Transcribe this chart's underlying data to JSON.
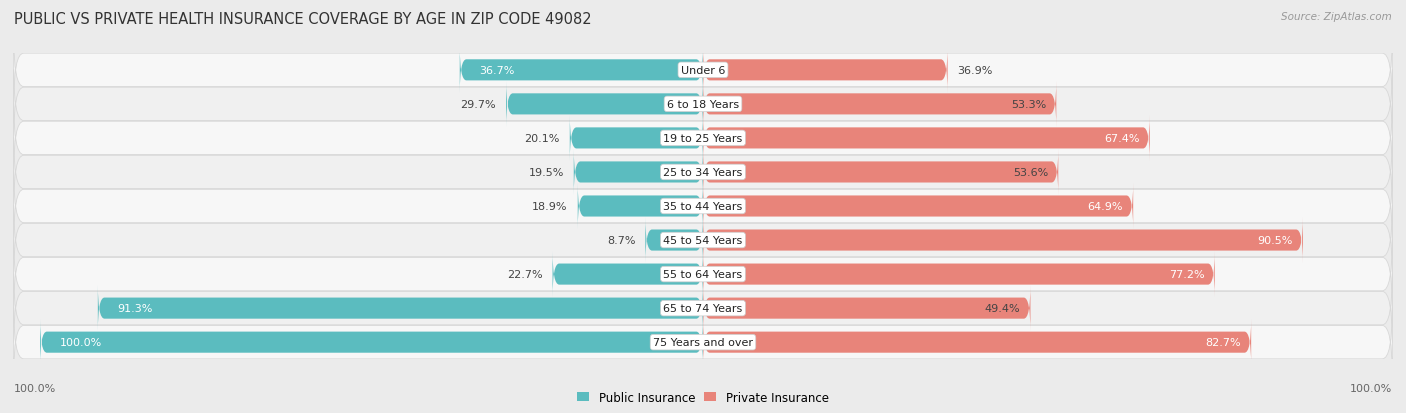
{
  "title": "PUBLIC VS PRIVATE HEALTH INSURANCE COVERAGE BY AGE IN ZIP CODE 49082",
  "source": "Source: ZipAtlas.com",
  "categories": [
    "Under 6",
    "6 to 18 Years",
    "19 to 25 Years",
    "25 to 34 Years",
    "35 to 44 Years",
    "45 to 54 Years",
    "55 to 64 Years",
    "65 to 74 Years",
    "75 Years and over"
  ],
  "public_values": [
    36.7,
    29.7,
    20.1,
    19.5,
    18.9,
    8.7,
    22.7,
    91.3,
    100.0
  ],
  "private_values": [
    36.9,
    53.3,
    67.4,
    53.6,
    64.9,
    90.5,
    77.2,
    49.4,
    82.7
  ],
  "public_color": "#5bbcbf",
  "private_color": "#e8847a",
  "bg_color": "#ebebeb",
  "row_bg_even": "#f5f5f5",
  "row_bg_odd": "#e8e8e8",
  "bar_height": 0.62,
  "title_fontsize": 10.5,
  "label_fontsize": 8.0,
  "value_fontsize": 8.0,
  "legend_fontsize": 8.5,
  "x_max": 100.0,
  "x_min": -100.0
}
